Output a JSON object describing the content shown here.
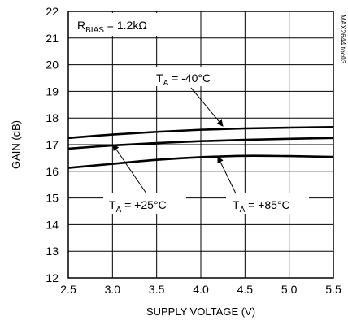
{
  "chart_data": {
    "type": "line",
    "title": "",
    "xlabel": "SUPPLY VOLTAGE (V)",
    "ylabel": "GAIN (dB)",
    "xlim": [
      2.5,
      5.5
    ],
    "ylim": [
      12,
      22
    ],
    "xticks": [
      2.5,
      3.0,
      3.5,
      4.0,
      4.5,
      5.0,
      5.5
    ],
    "xtick_labels": [
      "2.5",
      "3.0",
      "3.5",
      "4.0",
      "4.5",
      "5.0",
      "5.5"
    ],
    "yticks": [
      12,
      13,
      14,
      15,
      16,
      17,
      18,
      19,
      20,
      21,
      22
    ],
    "ytick_labels": [
      "12",
      "13",
      "14",
      "15",
      "16",
      "17",
      "18",
      "19",
      "20",
      "21",
      "22"
    ],
    "grid": true,
    "series": [
      {
        "name": "T_A = -40°C",
        "x": [
          2.5,
          3.0,
          3.5,
          4.0,
          4.5,
          5.0,
          5.5
        ],
        "y": [
          17.25,
          17.38,
          17.48,
          17.56,
          17.61,
          17.64,
          17.66
        ]
      },
      {
        "name": "T_A = +25°C",
        "x": [
          2.5,
          3.0,
          3.5,
          4.0,
          4.5,
          5.0,
          5.5
        ],
        "y": [
          16.85,
          16.97,
          17.06,
          17.13,
          17.18,
          17.22,
          17.25
        ]
      },
      {
        "name": "T_A = +85°C",
        "x": [
          2.5,
          3.0,
          3.5,
          4.0,
          4.5,
          5.0,
          5.5
        ],
        "y": [
          16.13,
          16.28,
          16.43,
          16.53,
          16.58,
          16.57,
          16.54
        ]
      }
    ],
    "annotations": {
      "rbias": {
        "main": "R",
        "sub": "BIAS",
        "rest": " = 1.2kΩ"
      },
      "t40": {
        "main": "T",
        "sub": "A",
        "rest": " = -40°C"
      },
      "t25": {
        "main": "T",
        "sub": "A",
        "rest": " = +25°C"
      },
      "t85": {
        "main": "T",
        "sub": "A",
        "rest": " = +85°C"
      },
      "side_id": "MAX2644 toc03"
    }
  }
}
